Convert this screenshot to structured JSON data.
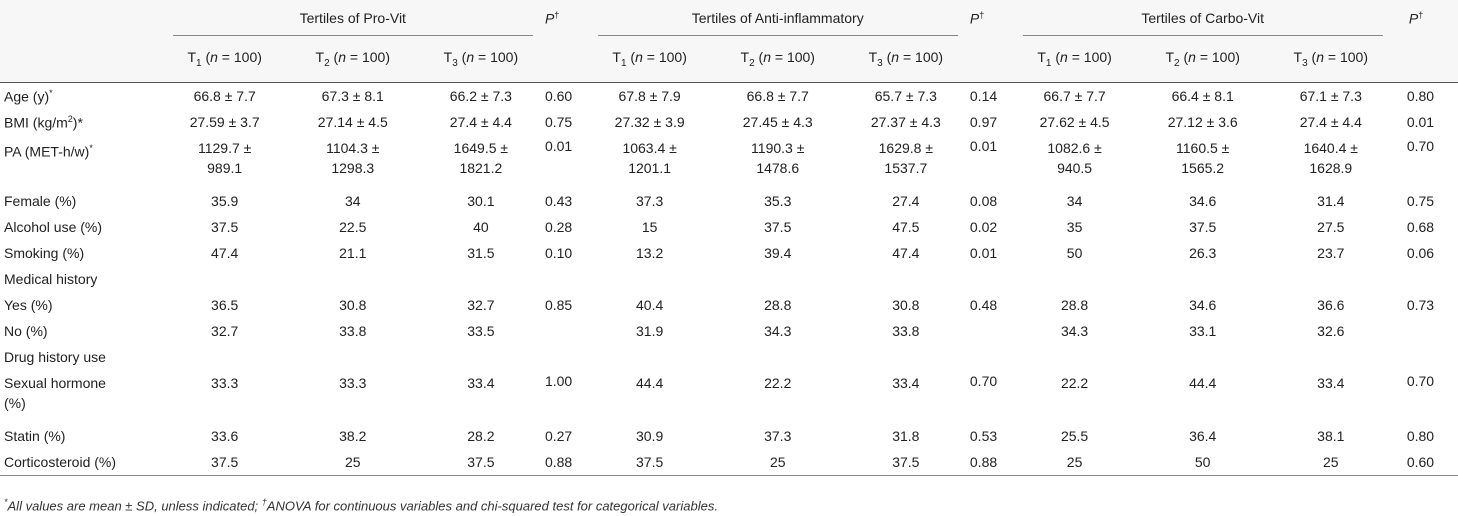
{
  "groups": [
    {
      "title": "Tertiles of Pro-Vit",
      "p": "P",
      "psup": "†"
    },
    {
      "title": "Tertiles of Anti-inflammatory",
      "p": "P",
      "psup": "†"
    },
    {
      "title": "Tertiles of Carbo-Vit",
      "p": "P",
      "psup": "†"
    }
  ],
  "tertile_headers": [
    {
      "t": "T",
      "sub": "1",
      "rest_a": " (",
      "n": "n",
      "rest_b": " = 100)"
    },
    {
      "t": "T",
      "sub": "2",
      "rest_a": " (",
      "n": "n",
      "rest_b": " = 100)"
    },
    {
      "t": "T",
      "sub": "3",
      "rest_a": " (",
      "n": "n",
      "rest_b": " = 100)"
    }
  ],
  "rows": [
    {
      "label": "Age (y)*",
      "vals": [
        "66.8 ± 7.7",
        "67.3 ± 8.1",
        "66.2 ± 7.3",
        "0.60",
        "67.8 ± 7.9",
        "66.8 ± 7.7",
        "65.7 ± 7.3",
        "0.14",
        "66.7 ± 7.7",
        "66.4 ± 8.1",
        "67.1 ± 7.3",
        "0.80"
      ]
    },
    {
      "label": "BMI (kg/m2)*",
      "vals": [
        "27.59 ± 3.7",
        "27.14 ± 4.5",
        "27.4 ± 4.4",
        "0.75",
        "27.32 ± 3.9",
        "27.45 ± 4.3",
        "27.37 ± 4.3",
        "0.97",
        "27.62 ± 4.5",
        "27.12 ± 3.6",
        "27.4 ± 4.4",
        "0.01"
      ]
    },
    {
      "label": "PA (MET-h/w)*",
      "vals": [
        "1129.7 ± 989.1",
        "1104.3 ± 1298.3",
        "1649.5 ± 1821.2",
        "0.01",
        "1063.4 ± 1201.1",
        "1190.3 ± 1478.6",
        "1629.8 ± 1537.7",
        "0.01",
        "1082.6 ± 940.5",
        "1160.5 ± 1565.2",
        "1640.4 ± 1628.9",
        "0.70"
      ]
    },
    {
      "label": "Female (%)",
      "vals": [
        "35.9",
        "34",
        "30.1",
        "0.43",
        "37.3",
        "35.3",
        "27.4",
        "0.08",
        "34",
        "34.6",
        "31.4",
        "0.75"
      ]
    },
    {
      "label": "Alcohol use (%)",
      "vals": [
        "37.5",
        "22.5",
        "40",
        "0.28",
        "15",
        "37.5",
        "47.5",
        "0.02",
        "35",
        "37.5",
        "27.5",
        "0.68"
      ]
    },
    {
      "label": "Smoking (%)",
      "vals": [
        "47.4",
        "21.1",
        "31.5",
        "0.10",
        "13.2",
        "39.4",
        "47.4",
        "0.01",
        "50",
        "26.3",
        "23.7",
        "0.06"
      ]
    },
    {
      "label": "Medical history",
      "vals": [
        "",
        "",
        "",
        "",
        "",
        "",
        "",
        "",
        "",
        "",
        "",
        ""
      ]
    },
    {
      "label": "Yes (%)",
      "vals": [
        "36.5",
        "30.8",
        "32.7",
        "0.85",
        "40.4",
        "28.8",
        "30.8",
        "0.48",
        "28.8",
        "34.6",
        "36.6",
        "0.73"
      ]
    },
    {
      "label": "No (%)",
      "vals": [
        "32.7",
        "33.8",
        "33.5",
        "",
        "31.9",
        "34.3",
        "33.8",
        "",
        "34.3",
        "33.1",
        "32.6",
        ""
      ]
    },
    {
      "label": "Drug history use",
      "vals": [
        "",
        "",
        "",
        "",
        "",
        "",
        "",
        "",
        "",
        "",
        "",
        ""
      ]
    },
    {
      "label": "Sexual hormone (%)",
      "vals": [
        "33.3",
        "33.3",
        "33.4",
        "1.00",
        "44.4",
        "22.2",
        "33.4",
        "0.70",
        "22.2",
        "44.4",
        "33.4",
        "0.70"
      ]
    },
    {
      "label": "Statin (%)",
      "vals": [
        "33.6",
        "38.2",
        "28.2",
        "0.27",
        "30.9",
        "37.3",
        "31.8",
        "0.53",
        "25.5",
        "36.4",
        "38.1",
        "0.80"
      ]
    },
    {
      "label": "Corticosteroid (%)",
      "vals": [
        "37.5",
        "25",
        "37.5",
        "0.88",
        "37.5",
        "25",
        "37.5",
        "0.88",
        "25",
        "50",
        "25",
        "0.60"
      ]
    }
  ],
  "footnote": {
    "star": "*",
    "part1": "All values are mean ± SD, unless indicated; ",
    "dagger": "†",
    "part2": "ANOVA for continuous variables and chi-squared test for categorical variables."
  }
}
